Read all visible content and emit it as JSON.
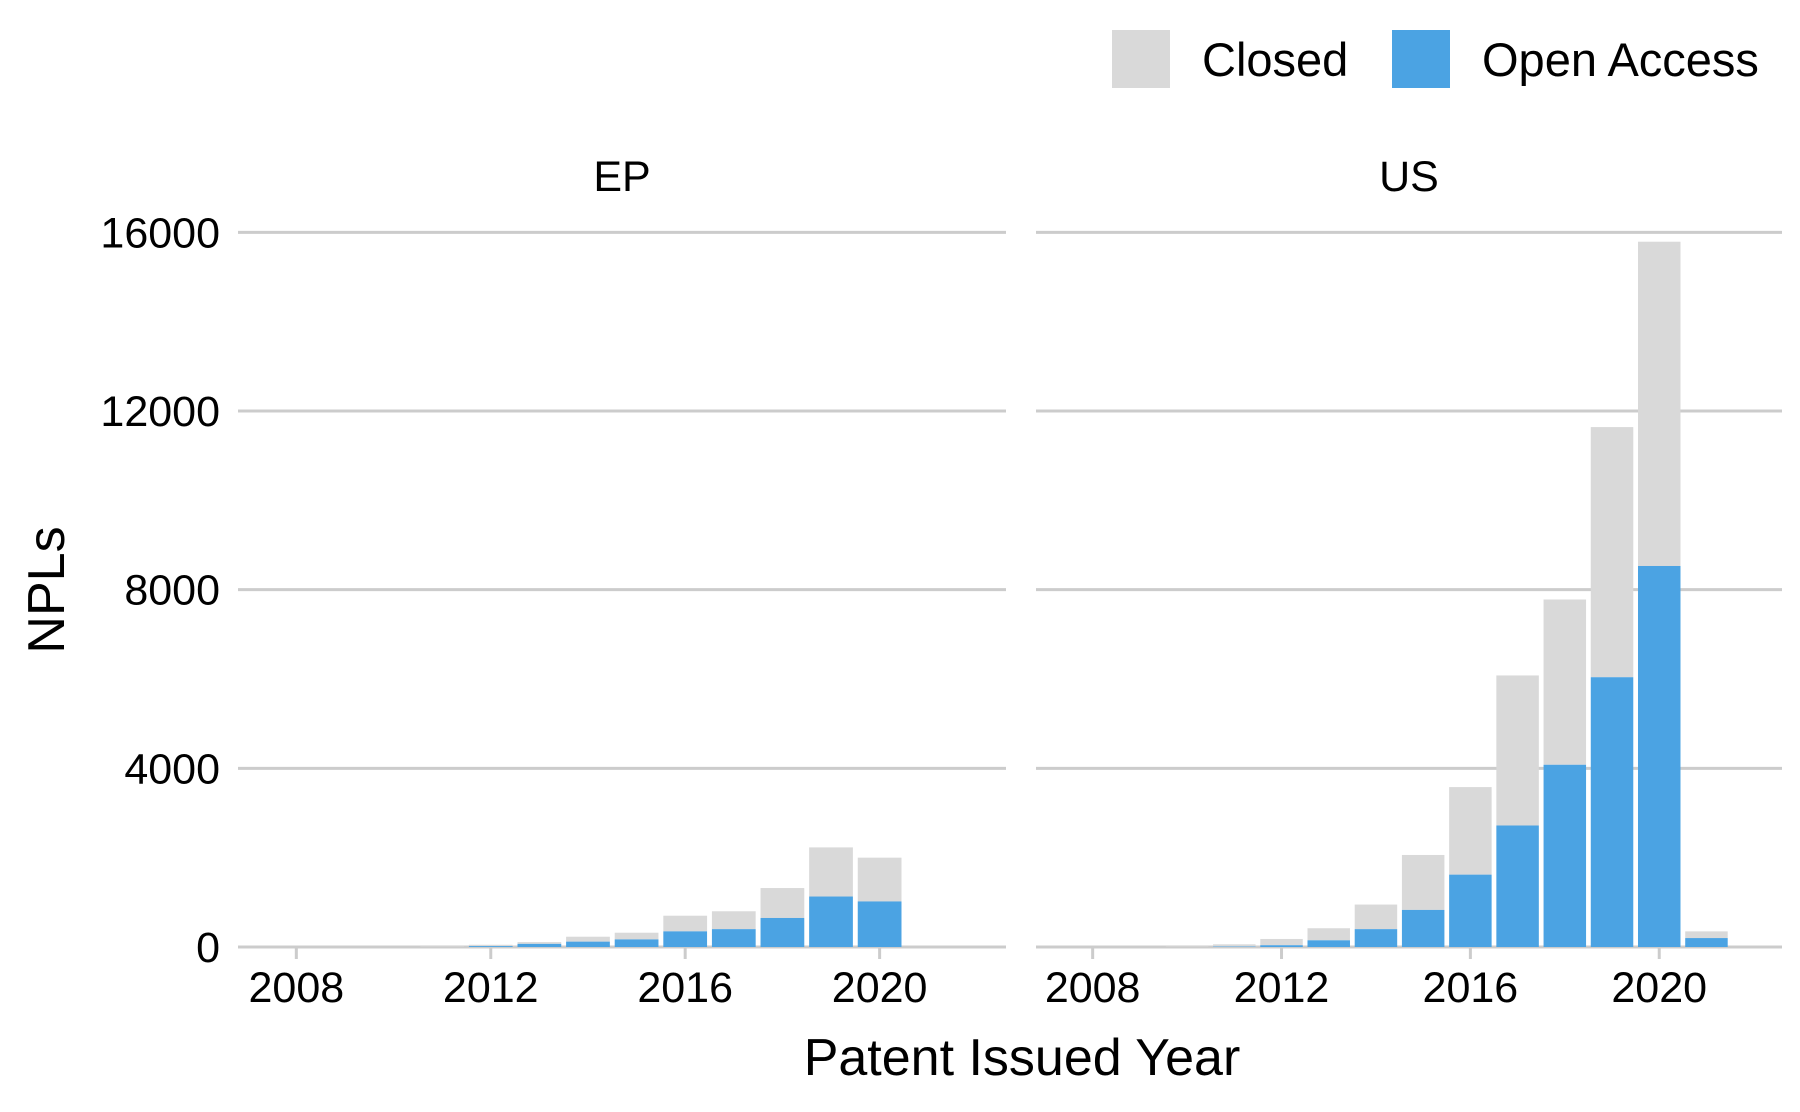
{
  "chart_data": {
    "type": "bar",
    "stacked": true,
    "title": "",
    "xlabel": "Patent Issued Year",
    "ylabel": "NPLs",
    "ylim": [
      0,
      16500
    ],
    "xlim": [
      2006.8,
      2022.6
    ],
    "y_ticks": [
      0,
      4000,
      8000,
      12000,
      16000
    ],
    "y_tick_labels": [
      "0",
      "4000",
      "8000",
      "12000",
      "16000"
    ],
    "x_ticks": [
      2008,
      2012,
      2016,
      2020
    ],
    "x_tick_labels": [
      "2008",
      "2012",
      "2016",
      "2020"
    ],
    "grid": "horizontal major",
    "legend": {
      "position": "top-right",
      "entries": [
        {
          "label": "Closed",
          "color": "#d9d9d9"
        },
        {
          "label": "Open Access",
          "color": "#4ba3e3"
        }
      ]
    },
    "series_colors": {
      "closed": "#d9d9d9",
      "open": "#4ba3e3"
    },
    "panels": [
      {
        "label": "EP",
        "years": [
          2008,
          2009,
          2010,
          2011,
          2012,
          2013,
          2014,
          2015,
          2016,
          2017,
          2018,
          2019,
          2020,
          2021
        ],
        "open": [
          0,
          0,
          0,
          0,
          20,
          70,
          120,
          170,
          350,
          400,
          650,
          1130,
          1020,
          0
        ],
        "total": [
          0,
          0,
          0,
          10,
          50,
          110,
          230,
          320,
          700,
          800,
          1320,
          2230,
          2000,
          0
        ]
      },
      {
        "label": "US",
        "years": [
          2008,
          2009,
          2010,
          2011,
          2012,
          2013,
          2014,
          2015,
          2016,
          2017,
          2018,
          2019,
          2020,
          2021
        ],
        "open": [
          0,
          0,
          0,
          10,
          40,
          150,
          400,
          830,
          1620,
          2720,
          4080,
          6040,
          8530,
          200
        ],
        "total": [
          0,
          0,
          10,
          60,
          180,
          420,
          950,
          2060,
          3580,
          6080,
          7780,
          11640,
          15790,
          350
        ]
      }
    ]
  }
}
